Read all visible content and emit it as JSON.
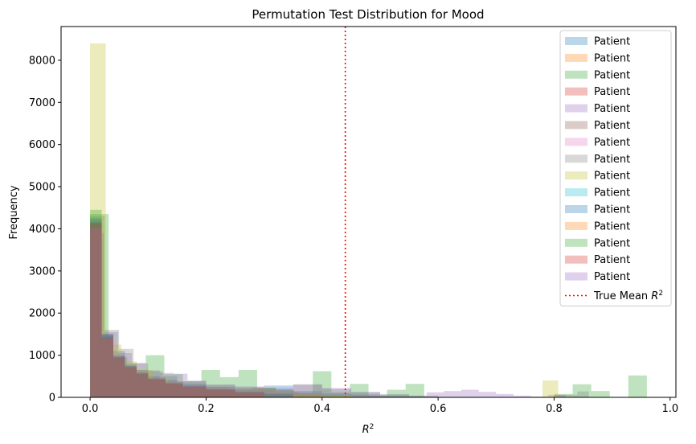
{
  "chart_data": {
    "type": "bar",
    "subtype": "overlaid-histogram",
    "title": "Permutation Test Distribution for Mood",
    "xlabel_base": "R",
    "xlabel_sup": "2",
    "ylabel": "Frequency",
    "xlim": [
      -0.05,
      1.01
    ],
    "ylim": [
      0,
      8800
    ],
    "xticks": [
      0.0,
      0.2,
      0.4,
      0.6,
      0.8,
      1.0
    ],
    "xtick_labels": [
      "0.0",
      "0.2",
      "0.4",
      "0.6",
      "0.8",
      "1.0"
    ],
    "yticks": [
      0,
      1000,
      2000,
      3000,
      4000,
      5000,
      6000,
      7000,
      8000
    ],
    "ytick_labels": [
      "0",
      "1000",
      "2000",
      "3000",
      "4000",
      "5000",
      "6000",
      "7000",
      "8000"
    ],
    "grid": false,
    "legend_position": "top-right",
    "alpha": 0.3,
    "true_mean": {
      "value": 0.44,
      "label_base": "True Mean ",
      "label_math": "R",
      "label_sup": "2",
      "color": "#ff0000"
    },
    "series": [
      {
        "name": "Patient",
        "color": "#1f77b4",
        "bins": [
          [
            0.0,
            0.02,
            4200
          ],
          [
            0.02,
            0.04,
            1450
          ],
          [
            0.04,
            0.06,
            1100
          ],
          [
            0.06,
            0.08,
            800
          ],
          [
            0.08,
            0.1,
            650
          ],
          [
            0.1,
            0.12,
            500
          ],
          [
            0.12,
            0.15,
            420
          ],
          [
            0.15,
            0.2,
            320
          ],
          [
            0.2,
            0.25,
            250
          ],
          [
            0.25,
            0.3,
            200
          ],
          [
            0.3,
            0.35,
            280
          ],
          [
            0.35,
            0.4,
            150
          ],
          [
            0.4,
            0.45,
            90
          ],
          [
            0.45,
            0.5,
            70
          ],
          [
            0.5,
            0.55,
            40
          ],
          [
            0.55,
            0.6,
            20
          ]
        ]
      },
      {
        "name": "Patient",
        "color": "#ff7f0e",
        "bins": [
          [
            0.0,
            0.02,
            4100
          ],
          [
            0.02,
            0.04,
            1500
          ],
          [
            0.04,
            0.06,
            1000
          ],
          [
            0.06,
            0.08,
            750
          ],
          [
            0.08,
            0.1,
            600
          ],
          [
            0.1,
            0.13,
            480
          ],
          [
            0.13,
            0.16,
            380
          ],
          [
            0.16,
            0.2,
            300
          ],
          [
            0.2,
            0.24,
            240
          ],
          [
            0.24,
            0.28,
            180
          ],
          [
            0.28,
            0.32,
            230
          ],
          [
            0.32,
            0.36,
            130
          ],
          [
            0.36,
            0.4,
            90
          ],
          [
            0.4,
            0.45,
            60
          ],
          [
            0.45,
            0.5,
            30
          ]
        ]
      },
      {
        "name": "Patient",
        "color": "#2ca02c",
        "bins": [
          [
            0.0,
            0.032,
            4350
          ],
          [
            0.032,
            0.064,
            950
          ],
          [
            0.064,
            0.096,
            650
          ],
          [
            0.096,
            0.128,
            1000
          ],
          [
            0.128,
            0.16,
            550
          ],
          [
            0.16,
            0.192,
            380
          ],
          [
            0.192,
            0.224,
            650
          ],
          [
            0.224,
            0.256,
            480
          ],
          [
            0.256,
            0.288,
            650
          ],
          [
            0.288,
            0.32,
            230
          ],
          [
            0.32,
            0.352,
            170
          ],
          [
            0.352,
            0.384,
            110
          ],
          [
            0.384,
            0.416,
            620
          ],
          [
            0.416,
            0.448,
            120
          ],
          [
            0.448,
            0.48,
            320
          ],
          [
            0.48,
            0.512,
            40
          ],
          [
            0.512,
            0.544,
            180
          ],
          [
            0.544,
            0.576,
            320
          ],
          [
            0.576,
            0.608,
            0
          ],
          [
            0.608,
            0.64,
            0
          ],
          [
            0.64,
            0.672,
            0
          ],
          [
            0.672,
            0.704,
            0
          ],
          [
            0.704,
            0.736,
            0
          ],
          [
            0.736,
            0.768,
            0
          ],
          [
            0.768,
            0.8,
            0
          ],
          [
            0.8,
            0.832,
            80
          ],
          [
            0.832,
            0.864,
            310
          ],
          [
            0.864,
            0.896,
            150
          ],
          [
            0.896,
            0.928,
            0
          ],
          [
            0.928,
            0.96,
            520
          ]
        ]
      },
      {
        "name": "Patient",
        "color": "#d62728",
        "bins": [
          [
            0.0,
            0.02,
            4000
          ],
          [
            0.02,
            0.04,
            1400
          ],
          [
            0.04,
            0.06,
            900
          ],
          [
            0.06,
            0.08,
            700
          ],
          [
            0.08,
            0.1,
            560
          ],
          [
            0.1,
            0.13,
            430
          ],
          [
            0.13,
            0.16,
            330
          ],
          [
            0.16,
            0.2,
            260
          ],
          [
            0.2,
            0.25,
            190
          ],
          [
            0.25,
            0.3,
            130
          ],
          [
            0.3,
            0.35,
            90
          ],
          [
            0.35,
            0.4,
            60
          ]
        ]
      },
      {
        "name": "Patient",
        "color": "#9467bd",
        "bins": [
          [
            0.0,
            0.024,
            3900
          ],
          [
            0.024,
            0.048,
            1550
          ],
          [
            0.048,
            0.072,
            1050
          ],
          [
            0.072,
            0.096,
            820
          ],
          [
            0.096,
            0.12,
            640
          ],
          [
            0.12,
            0.144,
            580
          ],
          [
            0.144,
            0.168,
            560
          ],
          [
            0.168,
            0.2,
            400
          ],
          [
            0.2,
            0.25,
            300
          ],
          [
            0.25,
            0.3,
            260
          ],
          [
            0.3,
            0.35,
            220
          ],
          [
            0.35,
            0.4,
            300
          ],
          [
            0.4,
            0.45,
            220
          ],
          [
            0.45,
            0.5,
            120
          ],
          [
            0.5,
            0.55,
            60
          ],
          [
            0.55,
            0.58,
            40
          ],
          [
            0.58,
            0.61,
            120
          ],
          [
            0.61,
            0.64,
            150
          ],
          [
            0.64,
            0.67,
            180
          ],
          [
            0.67,
            0.7,
            130
          ],
          [
            0.7,
            0.73,
            80
          ],
          [
            0.73,
            0.76,
            40
          ],
          [
            0.76,
            0.79,
            20
          ],
          [
            0.79,
            0.82,
            60
          ]
        ]
      },
      {
        "name": "Patient",
        "color": "#8c564b",
        "bins": [
          [
            0.0,
            0.02,
            4150
          ],
          [
            0.02,
            0.04,
            1500
          ],
          [
            0.04,
            0.06,
            980
          ],
          [
            0.06,
            0.08,
            720
          ],
          [
            0.08,
            0.1,
            560
          ],
          [
            0.1,
            0.13,
            420
          ],
          [
            0.13,
            0.16,
            320
          ],
          [
            0.16,
            0.2,
            250
          ],
          [
            0.2,
            0.25,
            170
          ],
          [
            0.25,
            0.3,
            110
          ]
        ]
      },
      {
        "name": "Patient",
        "color": "#e377c2",
        "bins": [
          [
            0.0,
            0.02,
            4050
          ],
          [
            0.02,
            0.04,
            1350
          ],
          [
            0.04,
            0.06,
            950
          ],
          [
            0.06,
            0.08,
            730
          ],
          [
            0.08,
            0.1,
            560
          ],
          [
            0.1,
            0.13,
            430
          ],
          [
            0.13,
            0.16,
            330
          ],
          [
            0.16,
            0.2,
            250
          ],
          [
            0.2,
            0.25,
            180
          ],
          [
            0.25,
            0.3,
            120
          ],
          [
            0.3,
            0.35,
            70
          ]
        ]
      },
      {
        "name": "Patient",
        "color": "#7f7f7f",
        "bins": [
          [
            0.0,
            0.025,
            4300
          ],
          [
            0.025,
            0.05,
            1600
          ],
          [
            0.05,
            0.075,
            1150
          ],
          [
            0.075,
            0.1,
            800
          ],
          [
            0.1,
            0.125,
            620
          ],
          [
            0.125,
            0.15,
            500
          ],
          [
            0.15,
            0.2,
            380
          ],
          [
            0.2,
            0.25,
            300
          ],
          [
            0.25,
            0.3,
            240
          ],
          [
            0.3,
            0.35,
            190
          ],
          [
            0.35,
            0.4,
            310
          ],
          [
            0.4,
            0.45,
            200
          ],
          [
            0.45,
            0.5,
            130
          ],
          [
            0.5,
            0.55,
            80
          ],
          [
            0.55,
            0.6,
            40
          ],
          [
            0.8,
            0.84,
            60
          ],
          [
            0.84,
            0.86,
            140
          ]
        ]
      },
      {
        "name": "Patient",
        "color": "#bcbd22",
        "bins": [
          [
            0.0,
            0.027,
            8400
          ],
          [
            0.027,
            0.054,
            1250
          ],
          [
            0.054,
            0.081,
            850
          ],
          [
            0.081,
            0.108,
            650
          ],
          [
            0.108,
            0.135,
            450
          ],
          [
            0.135,
            0.162,
            350
          ],
          [
            0.162,
            0.2,
            250
          ],
          [
            0.2,
            0.25,
            170
          ],
          [
            0.25,
            0.3,
            130
          ],
          [
            0.3,
            0.35,
            90
          ],
          [
            0.35,
            0.4,
            60
          ],
          [
            0.4,
            0.45,
            40
          ],
          [
            0.78,
            0.807,
            400
          ]
        ]
      },
      {
        "name": "Patient",
        "color": "#17becf",
        "bins": [
          [
            0.0,
            0.02,
            4100
          ],
          [
            0.02,
            0.04,
            1450
          ],
          [
            0.04,
            0.06,
            950
          ],
          [
            0.06,
            0.08,
            700
          ],
          [
            0.08,
            0.1,
            560
          ],
          [
            0.1,
            0.13,
            420
          ],
          [
            0.13,
            0.16,
            320
          ],
          [
            0.16,
            0.2,
            240
          ],
          [
            0.2,
            0.25,
            170
          ],
          [
            0.25,
            0.3,
            110
          ]
        ]
      },
      {
        "name": "Patient",
        "color": "#1f77b4",
        "bins": [
          [
            0.0,
            0.02,
            4250
          ],
          [
            0.02,
            0.04,
            1500
          ],
          [
            0.04,
            0.06,
            960
          ],
          [
            0.06,
            0.08,
            740
          ],
          [
            0.08,
            0.1,
            580
          ],
          [
            0.1,
            0.13,
            440
          ],
          [
            0.13,
            0.16,
            340
          ],
          [
            0.16,
            0.2,
            260
          ],
          [
            0.2,
            0.25,
            190
          ],
          [
            0.25,
            0.3,
            130
          ],
          [
            0.3,
            0.35,
            80
          ]
        ]
      },
      {
        "name": "Patient",
        "color": "#ff7f0e",
        "bins": [
          [
            0.0,
            0.02,
            4000
          ],
          [
            0.02,
            0.04,
            1400
          ],
          [
            0.04,
            0.06,
            920
          ],
          [
            0.06,
            0.08,
            700
          ],
          [
            0.08,
            0.1,
            540
          ],
          [
            0.1,
            0.13,
            420
          ],
          [
            0.13,
            0.16,
            320
          ],
          [
            0.16,
            0.2,
            240
          ],
          [
            0.2,
            0.25,
            170
          ],
          [
            0.25,
            0.3,
            110
          ]
        ]
      },
      {
        "name": "Patient",
        "color": "#2ca02c",
        "bins": [
          [
            0.0,
            0.02,
            4450
          ],
          [
            0.02,
            0.04,
            1450
          ],
          [
            0.04,
            0.06,
            960
          ],
          [
            0.06,
            0.08,
            740
          ],
          [
            0.08,
            0.1,
            560
          ],
          [
            0.1,
            0.13,
            440
          ],
          [
            0.13,
            0.16,
            330
          ],
          [
            0.16,
            0.2,
            250
          ],
          [
            0.2,
            0.25,
            180
          ],
          [
            0.25,
            0.3,
            120
          ],
          [
            0.3,
            0.35,
            70
          ]
        ]
      },
      {
        "name": "Patient",
        "color": "#d62728",
        "bins": [
          [
            0.0,
            0.02,
            4150
          ],
          [
            0.02,
            0.04,
            1420
          ],
          [
            0.04,
            0.06,
            930
          ],
          [
            0.06,
            0.08,
            710
          ],
          [
            0.08,
            0.1,
            550
          ],
          [
            0.1,
            0.13,
            420
          ],
          [
            0.13,
            0.16,
            320
          ],
          [
            0.16,
            0.2,
            240
          ],
          [
            0.2,
            0.25,
            170
          ],
          [
            0.25,
            0.3,
            110
          ]
        ]
      },
      {
        "name": "Patient",
        "color": "#9467bd",
        "bins": [
          [
            0.0,
            0.02,
            4000
          ],
          [
            0.02,
            0.04,
            1480
          ],
          [
            0.04,
            0.06,
            1000
          ],
          [
            0.06,
            0.08,
            760
          ],
          [
            0.08,
            0.1,
            600
          ],
          [
            0.1,
            0.13,
            460
          ],
          [
            0.13,
            0.16,
            360
          ],
          [
            0.16,
            0.2,
            280
          ],
          [
            0.2,
            0.25,
            200
          ],
          [
            0.25,
            0.3,
            140
          ],
          [
            0.3,
            0.35,
            90
          ]
        ]
      }
    ]
  }
}
